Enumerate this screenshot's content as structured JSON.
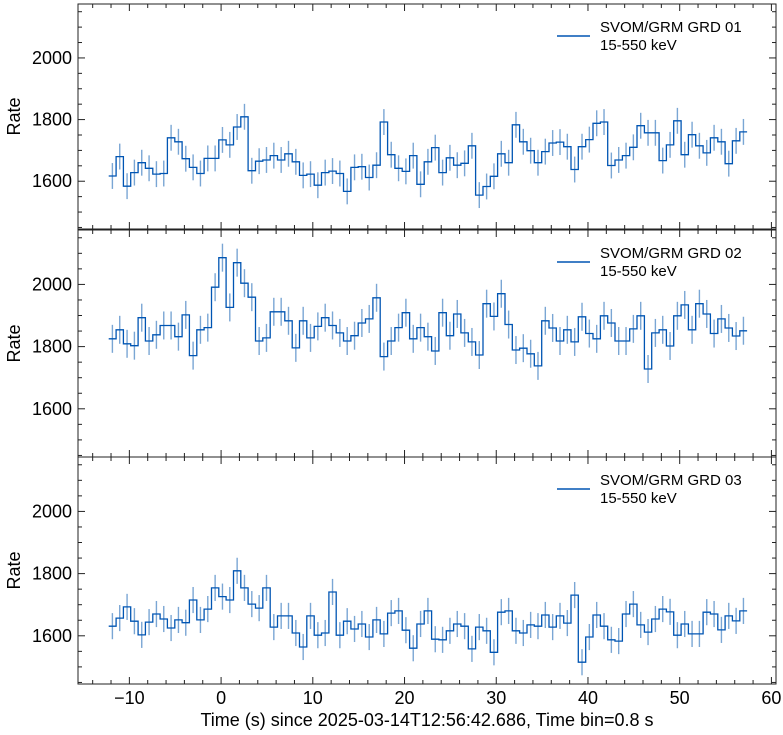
{
  "chart_data": {
    "type": "line",
    "subtype": "step light curve with error bars",
    "xlabel": "Time (s) since 2025-03-14T12:56:42.686, Time bin=0.8 s",
    "xlim": [
      -15.6,
      60.5
    ],
    "xticks": [
      -10,
      0,
      10,
      20,
      30,
      40,
      50,
      60
    ],
    "xtick_labels": [
      "−10",
      "0",
      "10",
      "20",
      "30",
      "40",
      "50",
      "60"
    ],
    "time_start": -12.25,
    "bin_width": 0.8,
    "series_color": "#0055b3",
    "errorbar_color": "#7aa6d4",
    "panels": [
      {
        "ylabel": "Rate",
        "ylim": [
          1445,
          2175
        ],
        "yticks": [
          1600,
          1800,
          2000
        ],
        "ytick_labels": [
          "1600",
          "1800",
          "2000"
        ],
        "legend": {
          "name": "SVOM/GRM GRD 01",
          "band": "15-550 keV",
          "position": "top-right"
        },
        "error": 42,
        "values": [
          1617,
          1680,
          1584,
          1628,
          1660,
          1642,
          1623,
          1625,
          1741,
          1728,
          1673,
          1645,
          1625,
          1674,
          1674,
          1734,
          1718,
          1776,
          1809,
          1634,
          1665,
          1669,
          1683,
          1669,
          1689,
          1663,
          1619,
          1623,
          1587,
          1628,
          1633,
          1625,
          1567,
          1645,
          1647,
          1612,
          1652,
          1792,
          1686,
          1642,
          1632,
          1683,
          1590,
          1663,
          1709,
          1628,
          1676,
          1652,
          1658,
          1715,
          1555,
          1583,
          1616,
          1689,
          1660,
          1783,
          1728,
          1699,
          1660,
          1696,
          1724,
          1727,
          1712,
          1638,
          1712,
          1735,
          1788,
          1792,
          1651,
          1669,
          1683,
          1710,
          1780,
          1757,
          1757,
          1667,
          1718,
          1796,
          1686,
          1751,
          1715,
          1692,
          1741,
          1728,
          1657,
          1731,
          1760
        ]
      },
      {
        "ylabel": "Rate",
        "ylim": [
          1445,
          2175
        ],
        "yticks": [
          1600,
          1800,
          2000
        ],
        "ytick_labels": [
          "1600",
          "1800",
          "2000"
        ],
        "legend": {
          "name": "SVOM/GRM GRD 02",
          "band": "15-550 keV",
          "position": "top-right"
        },
        "error": 45,
        "values": [
          1825,
          1854,
          1809,
          1803,
          1893,
          1818,
          1838,
          1868,
          1868,
          1832,
          1902,
          1771,
          1854,
          1861,
          1991,
          2086,
          1926,
          2070,
          2004,
          1959,
          1818,
          1828,
          1912,
          1912,
          1883,
          1796,
          1883,
          1828,
          1865,
          1893,
          1868,
          1844,
          1818,
          1835,
          1876,
          1889,
          1957,
          1768,
          1818,
          1861,
          1909,
          1825,
          1861,
          1832,
          1786,
          1909,
          1835,
          1905,
          1844,
          1815,
          1773,
          1938,
          1897,
          1970,
          1871,
          1789,
          1795,
          1777,
          1738,
          1883,
          1860,
          1818,
          1854,
          1815,
          1896,
          1842,
          1825,
          1899,
          1876,
          1818,
          1818,
          1857,
          1899,
          1728,
          1844,
          1854,
          1802,
          1899,
          1934,
          1854,
          1938,
          1905,
          1842,
          1889,
          1860,
          1834,
          1851
        ]
      },
      {
        "ylabel": "Rate",
        "ylim": [
          1445,
          2175
        ],
        "yticks": [
          1600,
          1800,
          2000
        ],
        "ytick_labels": [
          "1600",
          "1800",
          "2000"
        ],
        "legend": {
          "name": "SVOM/GRM GRD 03",
          "band": "15-550 keV",
          "position": "top-right"
        },
        "error": 42,
        "values": [
          1631,
          1657,
          1693,
          1647,
          1603,
          1644,
          1670,
          1654,
          1625,
          1651,
          1642,
          1715,
          1651,
          1686,
          1754,
          1726,
          1715,
          1809,
          1754,
          1702,
          1689,
          1754,
          1628,
          1664,
          1664,
          1609,
          1564,
          1664,
          1602,
          1609,
          1741,
          1602,
          1647,
          1622,
          1638,
          1596,
          1651,
          1606,
          1673,
          1680,
          1618,
          1560,
          1638,
          1680,
          1589,
          1587,
          1616,
          1638,
          1631,
          1558,
          1628,
          1616,
          1547,
          1676,
          1680,
          1616,
          1609,
          1635,
          1631,
          1667,
          1628,
          1664,
          1641,
          1731,
          1515,
          1596,
          1667,
          1631,
          1587,
          1583,
          1670,
          1702,
          1635,
          1612,
          1654,
          1686,
          1677,
          1602,
          1638,
          1606,
          1606,
          1676,
          1670,
          1619,
          1664,
          1648,
          1680
        ]
      }
    ]
  }
}
